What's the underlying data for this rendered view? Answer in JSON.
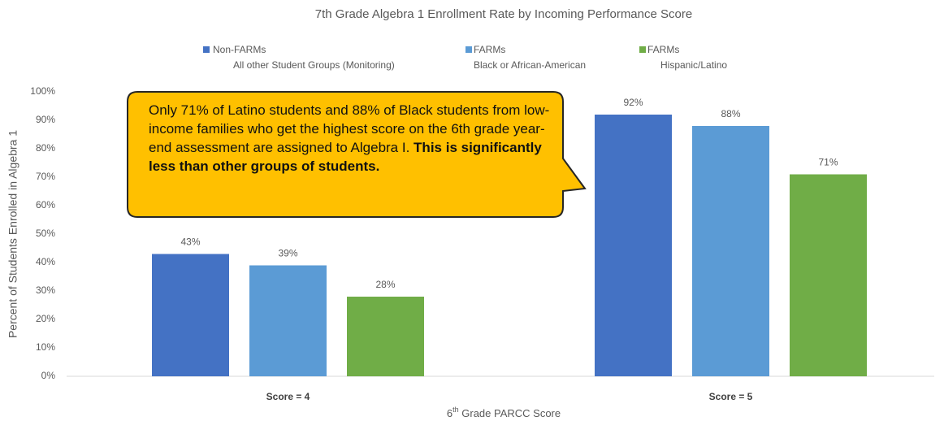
{
  "chart_data": {
    "type": "bar",
    "title": "7th Grade Algebra 1 Enrollment Rate by Incoming Performance Score",
    "categories": [
      "Score = 4",
      "Score = 5"
    ],
    "series": [
      {
        "name": "Non-FARMs",
        "group": "All other Student Groups (Monitoring)",
        "color": "#4472c4",
        "values": [
          43,
          92
        ],
        "value_labels": [
          "43%",
          "92%"
        ]
      },
      {
        "name": "FARMs",
        "group": "Black or African-American",
        "color": "#5b9bd5",
        "values": [
          39,
          88
        ],
        "value_labels": [
          "39%",
          "88%"
        ]
      },
      {
        "name": "FARMs",
        "group": "Hispanic/Latino",
        "color": "#70ad47",
        "values": [
          28,
          71
        ],
        "value_labels": [
          "28%",
          "71%"
        ]
      }
    ],
    "ylabel": "Percent of Students Enrolled in Algebra 1",
    "xlabel": {
      "base": "6",
      "sup": "th",
      "rest": " Grade PARCC Score"
    },
    "ylim": [
      0,
      100
    ],
    "yticks": [
      {
        "value": 0,
        "label": "0%"
      },
      {
        "value": 10,
        "label": "10%"
      },
      {
        "value": 20,
        "label": "20%"
      },
      {
        "value": 30,
        "label": "30%"
      },
      {
        "value": 40,
        "label": "40%"
      },
      {
        "value": 50,
        "label": "50%"
      },
      {
        "value": 60,
        "label": "60%"
      },
      {
        "value": 70,
        "label": "70%"
      },
      {
        "value": 80,
        "label": "80%"
      },
      {
        "value": 90,
        "label": "90%"
      },
      {
        "value": 100,
        "label": "100%"
      }
    ],
    "grid": false,
    "annotation": {
      "text": "Only 71% of Latino students and 88% of Black students from low-income families who get the highest score on the 6th grade year-end assessment are assigned to Algebra I.",
      "bold": "This is significantly less than other groups of students."
    }
  }
}
